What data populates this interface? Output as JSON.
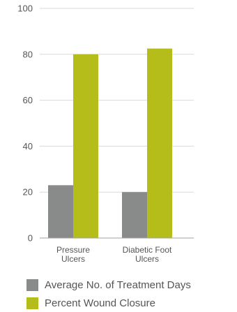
{
  "chart_data": {
    "type": "bar",
    "categories": [
      {
        "lines": [
          "Pressure",
          "Ulcers"
        ]
      },
      {
        "lines": [
          "Diabetic Foot",
          "Ulcers"
        ]
      }
    ],
    "series": [
      {
        "name": "Average No. of Treatment Days",
        "color": "#898b8b",
        "values": [
          23,
          20
        ]
      },
      {
        "name": "Percent Wound Closure",
        "color": "#b5bd1b",
        "values": [
          80,
          82.5
        ]
      }
    ],
    "ylim": [
      0,
      100
    ],
    "yticks": [
      0,
      20,
      40,
      60,
      80,
      100
    ],
    "grid": true,
    "legend_position": "bottom",
    "title": "",
    "xlabel": "",
    "ylabel": ""
  }
}
